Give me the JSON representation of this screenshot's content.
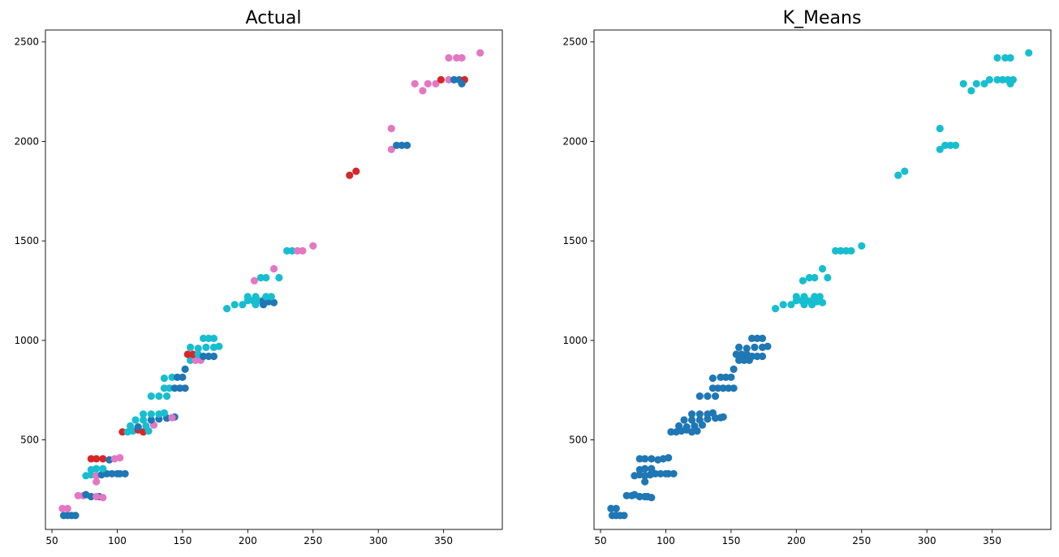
{
  "colors": {
    "blue": "#1f77b4",
    "cyan": "#17becf",
    "red": "#d62728",
    "pink": "#e377c2"
  },
  "chart_data": [
    {
      "type": "scatter",
      "title": "Actual",
      "xlabel": "",
      "ylabel": "",
      "xlim": [
        45,
        395
      ],
      "ylim": [
        50,
        2560
      ],
      "xticks": [
        50,
        100,
        150,
        200,
        250,
        300,
        350
      ],
      "yticks": [
        500,
        1000,
        1500,
        2000,
        2500
      ],
      "grid": false,
      "legend": "none",
      "points": [
        [
          59,
          120,
          "blue"
        ],
        [
          62,
          120,
          "blue"
        ],
        [
          65,
          120,
          "blue"
        ],
        [
          68,
          120,
          "blue"
        ],
        [
          58,
          155,
          "pink"
        ],
        [
          62,
          155,
          "pink"
        ],
        [
          70,
          220,
          "pink"
        ],
        [
          74,
          220,
          "pink"
        ],
        [
          76,
          225,
          "blue"
        ],
        [
          80,
          215,
          "blue"
        ],
        [
          86,
          215,
          "blue"
        ],
        [
          89,
          210,
          "pink"
        ],
        [
          84,
          215,
          "pink"
        ],
        [
          84,
          290,
          "pink"
        ],
        [
          76,
          320,
          "cyan"
        ],
        [
          80,
          325,
          "cyan"
        ],
        [
          84,
          320,
          "pink"
        ],
        [
          88,
          325,
          "blue"
        ],
        [
          92,
          330,
          "blue"
        ],
        [
          96,
          330,
          "blue"
        ],
        [
          100,
          330,
          "blue"
        ],
        [
          102,
          330,
          "blue"
        ],
        [
          106,
          330,
          "blue"
        ],
        [
          80,
          350,
          "cyan"
        ],
        [
          84,
          355,
          "cyan"
        ],
        [
          89,
          355,
          "cyan"
        ],
        [
          80,
          405,
          "red"
        ],
        [
          84,
          405,
          "red"
        ],
        [
          89,
          405,
          "red"
        ],
        [
          94,
          400,
          "blue"
        ],
        [
          98,
          405,
          "pink"
        ],
        [
          102,
          410,
          "pink"
        ],
        [
          104,
          540,
          "red"
        ],
        [
          108,
          540,
          "cyan"
        ],
        [
          112,
          545,
          "cyan"
        ],
        [
          116,
          550,
          "red"
        ],
        [
          120,
          540,
          "red"
        ],
        [
          124,
          545,
          "cyan"
        ],
        [
          110,
          570,
          "cyan"
        ],
        [
          116,
          565,
          "blue"
        ],
        [
          122,
          570,
          "cyan"
        ],
        [
          128,
          575,
          "pink"
        ],
        [
          114,
          600,
          "cyan"
        ],
        [
          120,
          600,
          "cyan"
        ],
        [
          126,
          600,
          "blue"
        ],
        [
          132,
          605,
          "blue"
        ],
        [
          138,
          610,
          "blue"
        ],
        [
          144,
          615,
          "blue"
        ],
        [
          142,
          612,
          "pink"
        ],
        [
          120,
          630,
          "cyan"
        ],
        [
          126,
          630,
          "cyan"
        ],
        [
          132,
          630,
          "cyan"
        ],
        [
          136,
          635,
          "cyan"
        ],
        [
          126,
          720,
          "cyan"
        ],
        [
          132,
          720,
          "cyan"
        ],
        [
          138,
          720,
          "cyan"
        ],
        [
          136,
          760,
          "cyan"
        ],
        [
          140,
          760,
          "cyan"
        ],
        [
          144,
          760,
          "blue"
        ],
        [
          148,
          760,
          "blue"
        ],
        [
          152,
          760,
          "blue"
        ],
        [
          136,
          810,
          "cyan"
        ],
        [
          142,
          815,
          "cyan"
        ],
        [
          146,
          815,
          "blue"
        ],
        [
          150,
          815,
          "blue"
        ],
        [
          152,
          855,
          "blue"
        ],
        [
          156,
          900,
          "cyan"
        ],
        [
          160,
          900,
          "pink"
        ],
        [
          164,
          900,
          "pink"
        ],
        [
          154,
          930,
          "red"
        ],
        [
          158,
          930,
          "red"
        ],
        [
          162,
          930,
          "cyan"
        ],
        [
          166,
          920,
          "blue"
        ],
        [
          170,
          920,
          "blue"
        ],
        [
          174,
          920,
          "blue"
        ],
        [
          156,
          965,
          "cyan"
        ],
        [
          162,
          960,
          "cyan"
        ],
        [
          168,
          965,
          "cyan"
        ],
        [
          174,
          965,
          "cyan"
        ],
        [
          178,
          970,
          "cyan"
        ],
        [
          166,
          1010,
          "cyan"
        ],
        [
          170,
          1010,
          "cyan"
        ],
        [
          174,
          1010,
          "cyan"
        ],
        [
          184,
          1160,
          "cyan"
        ],
        [
          190,
          1180,
          "cyan"
        ],
        [
          196,
          1180,
          "cyan"
        ],
        [
          200,
          1200,
          "cyan"
        ],
        [
          204,
          1200,
          "cyan"
        ],
        [
          208,
          1200,
          "cyan"
        ],
        [
          212,
          1200,
          "blue"
        ],
        [
          216,
          1195,
          "blue"
        ],
        [
          220,
          1190,
          "blue"
        ],
        [
          200,
          1220,
          "cyan"
        ],
        [
          206,
          1220,
          "cyan"
        ],
        [
          214,
          1220,
          "cyan"
        ],
        [
          218,
          1220,
          "cyan"
        ],
        [
          206,
          1180,
          "cyan"
        ],
        [
          212,
          1180,
          "blue"
        ],
        [
          205,
          1300,
          "pink"
        ],
        [
          210,
          1315,
          "cyan"
        ],
        [
          214,
          1315,
          "cyan"
        ],
        [
          224,
          1315,
          "cyan"
        ],
        [
          220,
          1360,
          "pink"
        ],
        [
          230,
          1450,
          "cyan"
        ],
        [
          234,
          1450,
          "cyan"
        ],
        [
          238,
          1450,
          "pink"
        ],
        [
          242,
          1450,
          "pink"
        ],
        [
          250,
          1475,
          "pink"
        ],
        [
          278,
          1830,
          "red"
        ],
        [
          283,
          1850,
          "red"
        ],
        [
          310,
          2065,
          "pink"
        ],
        [
          310,
          1960,
          "pink"
        ],
        [
          314,
          1980,
          "blue"
        ],
        [
          318,
          1980,
          "blue"
        ],
        [
          322,
          1980,
          "blue"
        ],
        [
          328,
          2290,
          "pink"
        ],
        [
          334,
          2255,
          "pink"
        ],
        [
          338,
          2290,
          "pink"
        ],
        [
          344,
          2290,
          "pink"
        ],
        [
          348,
          2310,
          "red"
        ],
        [
          354,
          2310,
          "pink"
        ],
        [
          358,
          2310,
          "blue"
        ],
        [
          362,
          2310,
          "blue"
        ],
        [
          366,
          2310,
          "red"
        ],
        [
          364,
          2290,
          "blue"
        ],
        [
          354,
          2420,
          "pink"
        ],
        [
          360,
          2420,
          "pink"
        ],
        [
          364,
          2420,
          "pink"
        ],
        [
          378,
          2445,
          "pink"
        ]
      ]
    },
    {
      "type": "scatter",
      "title": "K_Means",
      "xlabel": "",
      "ylabel": "",
      "xlim": [
        45,
        395
      ],
      "ylim": [
        50,
        2560
      ],
      "xticks": [
        50,
        100,
        150,
        200,
        250,
        300,
        350
      ],
      "yticks": [
        500,
        1000,
        1500,
        2000,
        2500
      ],
      "grid": false,
      "legend": "none",
      "points": [
        [
          59,
          120,
          "blue"
        ],
        [
          62,
          120,
          "blue"
        ],
        [
          65,
          120,
          "blue"
        ],
        [
          68,
          120,
          "blue"
        ],
        [
          58,
          155,
          "blue"
        ],
        [
          62,
          155,
          "blue"
        ],
        [
          70,
          220,
          "blue"
        ],
        [
          74,
          220,
          "blue"
        ],
        [
          76,
          225,
          "blue"
        ],
        [
          80,
          215,
          "blue"
        ],
        [
          86,
          215,
          "blue"
        ],
        [
          89,
          210,
          "blue"
        ],
        [
          84,
          215,
          "blue"
        ],
        [
          84,
          290,
          "blue"
        ],
        [
          76,
          320,
          "blue"
        ],
        [
          80,
          325,
          "blue"
        ],
        [
          84,
          320,
          "blue"
        ],
        [
          88,
          325,
          "blue"
        ],
        [
          92,
          330,
          "blue"
        ],
        [
          96,
          330,
          "blue"
        ],
        [
          100,
          330,
          "blue"
        ],
        [
          102,
          330,
          "blue"
        ],
        [
          106,
          330,
          "blue"
        ],
        [
          80,
          350,
          "blue"
        ],
        [
          84,
          355,
          "blue"
        ],
        [
          89,
          355,
          "blue"
        ],
        [
          80,
          405,
          "blue"
        ],
        [
          84,
          405,
          "blue"
        ],
        [
          89,
          405,
          "blue"
        ],
        [
          94,
          400,
          "blue"
        ],
        [
          98,
          405,
          "blue"
        ],
        [
          102,
          410,
          "blue"
        ],
        [
          104,
          540,
          "blue"
        ],
        [
          108,
          540,
          "blue"
        ],
        [
          112,
          545,
          "blue"
        ],
        [
          116,
          550,
          "blue"
        ],
        [
          120,
          540,
          "blue"
        ],
        [
          124,
          545,
          "blue"
        ],
        [
          110,
          570,
          "blue"
        ],
        [
          116,
          565,
          "blue"
        ],
        [
          122,
          570,
          "blue"
        ],
        [
          128,
          575,
          "blue"
        ],
        [
          114,
          600,
          "blue"
        ],
        [
          120,
          600,
          "blue"
        ],
        [
          126,
          600,
          "blue"
        ],
        [
          132,
          605,
          "blue"
        ],
        [
          138,
          610,
          "blue"
        ],
        [
          144,
          615,
          "blue"
        ],
        [
          142,
          612,
          "blue"
        ],
        [
          120,
          630,
          "blue"
        ],
        [
          126,
          630,
          "blue"
        ],
        [
          132,
          630,
          "blue"
        ],
        [
          136,
          635,
          "blue"
        ],
        [
          126,
          720,
          "blue"
        ],
        [
          132,
          720,
          "blue"
        ],
        [
          138,
          720,
          "blue"
        ],
        [
          136,
          760,
          "blue"
        ],
        [
          140,
          760,
          "blue"
        ],
        [
          144,
          760,
          "blue"
        ],
        [
          148,
          760,
          "blue"
        ],
        [
          152,
          760,
          "blue"
        ],
        [
          136,
          810,
          "blue"
        ],
        [
          142,
          815,
          "blue"
        ],
        [
          146,
          815,
          "blue"
        ],
        [
          150,
          815,
          "blue"
        ],
        [
          152,
          855,
          "blue"
        ],
        [
          156,
          900,
          "blue"
        ],
        [
          160,
          900,
          "blue"
        ],
        [
          164,
          900,
          "blue"
        ],
        [
          154,
          930,
          "blue"
        ],
        [
          158,
          930,
          "blue"
        ],
        [
          162,
          930,
          "blue"
        ],
        [
          166,
          920,
          "blue"
        ],
        [
          170,
          920,
          "blue"
        ],
        [
          174,
          920,
          "blue"
        ],
        [
          156,
          965,
          "blue"
        ],
        [
          162,
          960,
          "blue"
        ],
        [
          168,
          965,
          "blue"
        ],
        [
          174,
          965,
          "blue"
        ],
        [
          178,
          970,
          "blue"
        ],
        [
          166,
          1010,
          "blue"
        ],
        [
          170,
          1010,
          "blue"
        ],
        [
          174,
          1010,
          "blue"
        ],
        [
          184,
          1160,
          "cyan"
        ],
        [
          190,
          1180,
          "cyan"
        ],
        [
          196,
          1180,
          "cyan"
        ],
        [
          200,
          1200,
          "cyan"
        ],
        [
          204,
          1200,
          "cyan"
        ],
        [
          208,
          1200,
          "cyan"
        ],
        [
          212,
          1200,
          "cyan"
        ],
        [
          216,
          1195,
          "cyan"
        ],
        [
          220,
          1190,
          "cyan"
        ],
        [
          200,
          1220,
          "cyan"
        ],
        [
          206,
          1220,
          "cyan"
        ],
        [
          214,
          1220,
          "cyan"
        ],
        [
          218,
          1220,
          "cyan"
        ],
        [
          206,
          1180,
          "cyan"
        ],
        [
          212,
          1180,
          "cyan"
        ],
        [
          205,
          1300,
          "cyan"
        ],
        [
          210,
          1315,
          "cyan"
        ],
        [
          214,
          1315,
          "cyan"
        ],
        [
          224,
          1315,
          "cyan"
        ],
        [
          220,
          1360,
          "cyan"
        ],
        [
          230,
          1450,
          "cyan"
        ],
        [
          234,
          1450,
          "cyan"
        ],
        [
          238,
          1450,
          "cyan"
        ],
        [
          242,
          1450,
          "cyan"
        ],
        [
          250,
          1475,
          "cyan"
        ],
        [
          278,
          1830,
          "cyan"
        ],
        [
          283,
          1850,
          "cyan"
        ],
        [
          310,
          2065,
          "cyan"
        ],
        [
          310,
          1960,
          "cyan"
        ],
        [
          314,
          1980,
          "cyan"
        ],
        [
          318,
          1980,
          "cyan"
        ],
        [
          322,
          1980,
          "cyan"
        ],
        [
          328,
          2290,
          "cyan"
        ],
        [
          334,
          2255,
          "cyan"
        ],
        [
          338,
          2290,
          "cyan"
        ],
        [
          344,
          2290,
          "cyan"
        ],
        [
          348,
          2310,
          "cyan"
        ],
        [
          354,
          2310,
          "cyan"
        ],
        [
          358,
          2310,
          "cyan"
        ],
        [
          362,
          2310,
          "cyan"
        ],
        [
          366,
          2310,
          "cyan"
        ],
        [
          364,
          2290,
          "cyan"
        ],
        [
          354,
          2420,
          "cyan"
        ],
        [
          360,
          2420,
          "cyan"
        ],
        [
          364,
          2420,
          "cyan"
        ],
        [
          378,
          2445,
          "cyan"
        ]
      ]
    }
  ]
}
